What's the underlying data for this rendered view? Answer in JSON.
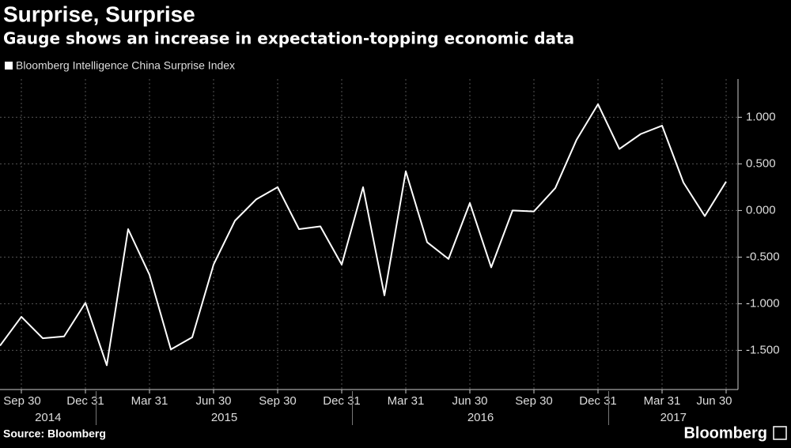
{
  "chart_data": {
    "type": "line",
    "title": "Surprise, Surprise",
    "subtitle": "Gauge shows an increase in expectation-topping economic data",
    "source": "Source: Bloomberg",
    "brand": "Bloomberg",
    "categories": [
      "2014-08-31",
      "2014-09-30",
      "2014-10-31",
      "2014-11-30",
      "2014-12-31",
      "2015-01-31",
      "2015-02-28",
      "2015-03-31",
      "2015-04-30",
      "2015-05-31",
      "2015-06-30",
      "2015-07-31",
      "2015-08-31",
      "2015-09-30",
      "2015-10-31",
      "2015-11-30",
      "2015-12-31",
      "2016-01-31",
      "2016-02-29",
      "2016-03-31",
      "2016-04-30",
      "2016-05-31",
      "2016-06-30",
      "2016-07-31",
      "2016-08-31",
      "2016-09-30",
      "2016-10-31",
      "2016-11-30",
      "2016-12-31",
      "2017-01-31",
      "2017-02-28",
      "2017-03-31",
      "2017-04-30",
      "2017-05-31",
      "2017-06-30"
    ],
    "series": [
      {
        "name": "Bloomberg Intelligence China Surprise Index",
        "color": "#ffffff",
        "values": [
          -1.45,
          -1.14,
          -1.37,
          -1.35,
          -0.99,
          -1.66,
          -0.2,
          -0.69,
          -1.49,
          -1.36,
          -0.58,
          -0.11,
          0.12,
          0.25,
          -0.2,
          -0.17,
          -0.58,
          0.25,
          -0.91,
          0.42,
          -0.34,
          -0.52,
          0.08,
          -0.61,
          0.0,
          -0.01,
          0.24,
          0.76,
          1.14,
          0.66,
          0.82,
          0.91,
          0.3,
          -0.06,
          0.31
        ]
      }
    ],
    "xticks": [
      {
        "value": "2014-09-30",
        "label": "Sep 30"
      },
      {
        "value": "2014-12-31",
        "label": "Dec 31"
      },
      {
        "value": "2015-03-31",
        "label": "Mar 31"
      },
      {
        "value": "2015-06-30",
        "label": "Jun 30"
      },
      {
        "value": "2015-09-30",
        "label": "Sep 30"
      },
      {
        "value": "2015-12-31",
        "label": "Dec 31"
      },
      {
        "value": "2016-03-31",
        "label": "Mar 31"
      },
      {
        "value": "2016-06-30",
        "label": "Jun 30"
      },
      {
        "value": "2016-09-30",
        "label": "Sep 30"
      },
      {
        "value": "2016-12-31",
        "label": "Dec 31"
      },
      {
        "value": "2017-03-31",
        "label": "Mar 31"
      },
      {
        "value": "2017-06-30",
        "label": "Jun 30"
      }
    ],
    "years": [
      "2014",
      "2015",
      "2016",
      "2017"
    ],
    "ylim": [
      -1.92,
      1.41
    ],
    "yticks": [
      {
        "value": 1,
        "label": "1.000"
      },
      {
        "value": 0.5,
        "label": "0.500"
      },
      {
        "value": 0,
        "label": "0.000"
      },
      {
        "value": -0.5,
        "label": "-0.500"
      },
      {
        "value": -1,
        "label": "-1.000"
      },
      {
        "value": -1.5,
        "label": "-1.500"
      }
    ],
    "grid": true,
    "y_axis_side": "right"
  }
}
